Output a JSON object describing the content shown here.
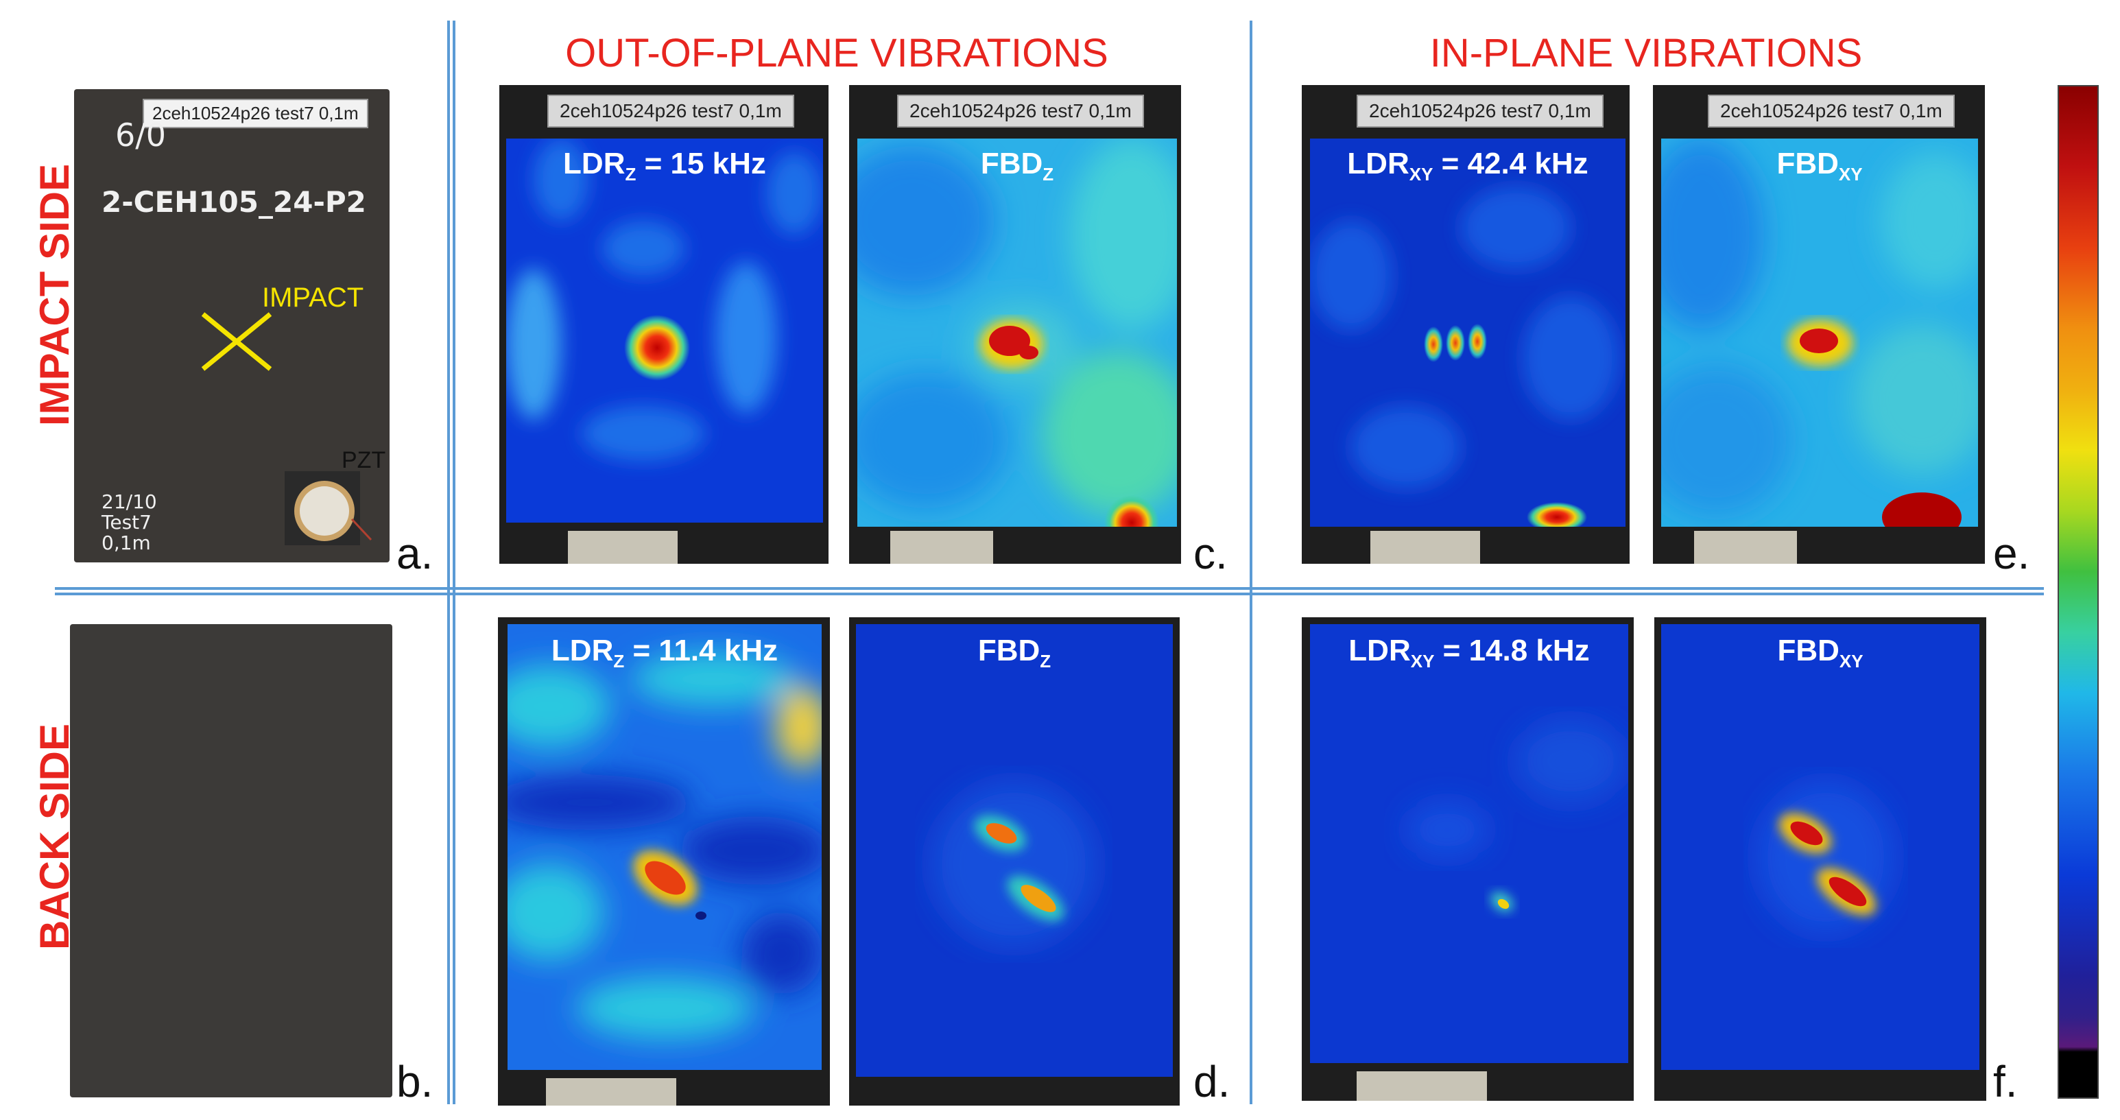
{
  "headings": {
    "out_of_plane": "OUT-OF-PLANE VIBRATIONS",
    "in_plane": "IN-PLANE VIBRATIONS"
  },
  "row_labels": {
    "impact_side": "IMPACT SIDE",
    "back_side": "BACK SIDE"
  },
  "specimen_tag": "2ceh10524p26 test7 0,1m",
  "photo_a": {
    "handwriting_top": "6/0",
    "handwriting_id": "2-CEH105_24-P2",
    "handwriting_corner": [
      "21/10",
      "Test7",
      "0,1m"
    ],
    "impact_label": "IMPACT",
    "pzt_label": "PZT"
  },
  "maps": {
    "c_left": {
      "name": "LDR",
      "sub": "Z",
      "value": " = 15 kHz"
    },
    "c_right": {
      "name": "FBD",
      "sub": "Z",
      "value": ""
    },
    "e_left": {
      "name": "LDR",
      "sub": "XY",
      "value": " = 42.4 kHz"
    },
    "e_right": {
      "name": "FBD",
      "sub": "XY",
      "value": ""
    },
    "d_left": {
      "name": "LDR",
      "sub": "Z",
      "value": " = 11.4 kHz"
    },
    "d_right": {
      "name": "FBD",
      "sub": "Z",
      "value": ""
    },
    "f_left": {
      "name": "LDR",
      "sub": "XY",
      "value": " = 14.8 kHz"
    },
    "f_right": {
      "name": "FBD",
      "sub": "XY",
      "value": ""
    }
  },
  "panel_letters": {
    "a": "a.",
    "b": "b.",
    "c": "c.",
    "d": "d.",
    "e": "e.",
    "f": "f."
  },
  "colors": {
    "heading_red": "#e8251f",
    "divider_blue": "#5b9bd5",
    "impact_marker_yellow": "#f5e400",
    "jet_colormap": [
      "#000000",
      "#5a1a7a",
      "#20209a",
      "#0a3ad8",
      "#1a78e8",
      "#20b8e8",
      "#38d0a0",
      "#40c040",
      "#a8d820",
      "#f0e010",
      "#f09010",
      "#e84010",
      "#c01010",
      "#8a0000"
    ]
  }
}
